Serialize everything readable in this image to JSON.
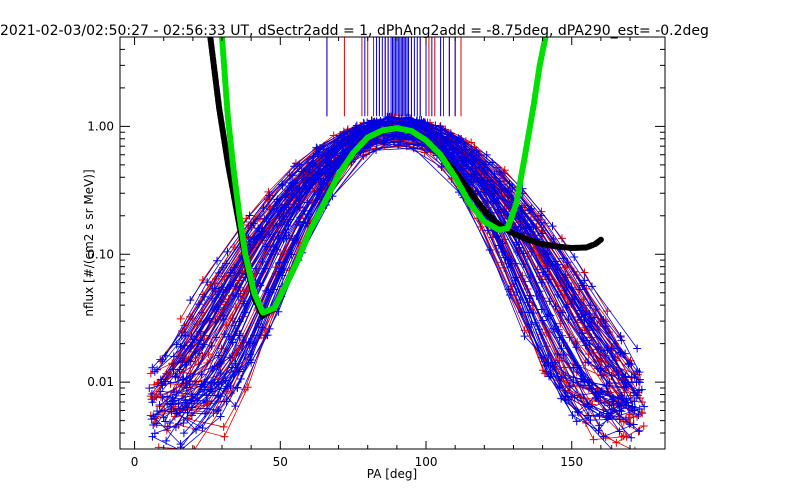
{
  "chart_data": {
    "type": "line",
    "title": "2021-02-03/02:50:27 - 02:56:33 UT, dSectr2add = 1, dPhAng2add = -8.75deg, dPA290_est=  -0.2deg",
    "xlabel": "PA [deg]",
    "ylabel": "nflux [#/(cm2 s sr MeV)]",
    "xlim": [
      -5,
      182
    ],
    "ylim": [
      0.003,
      5
    ],
    "y_scale": "log",
    "x_ticks": [
      0,
      50,
      100,
      150
    ],
    "x_tick_labels": [
      "0",
      "50",
      "100",
      "150"
    ],
    "y_ticks": [
      0.01,
      0.1,
      1.0
    ],
    "y_tick_labels": [
      "0.01",
      "0.10",
      "1.00"
    ],
    "grid": false,
    "colors": {
      "red_series": "#e00000",
      "blue_series": "#0000e0",
      "black_fit": "#000000",
      "green_fit": "#00e000"
    },
    "series": [
      {
        "color": "#000000",
        "style": "thick-dots",
        "x": [
          26,
          29,
          32,
          35,
          38,
          41,
          44,
          48,
          52,
          56,
          60,
          65,
          70,
          75,
          80,
          85,
          90,
          95,
          100,
          105,
          110,
          115,
          120,
          125,
          130,
          135,
          140,
          145,
          150,
          155,
          158,
          160
        ],
        "y": [
          5.0,
          1.4,
          0.52,
          0.22,
          0.095,
          0.046,
          0.033,
          0.038,
          0.058,
          0.09,
          0.15,
          0.25,
          0.42,
          0.62,
          0.82,
          0.93,
          0.97,
          0.92,
          0.78,
          0.6,
          0.44,
          0.31,
          0.22,
          0.17,
          0.145,
          0.13,
          0.12,
          0.115,
          0.112,
          0.113,
          0.12,
          0.13
        ]
      },
      {
        "color": "#00e000",
        "style": "thick-dots",
        "x": [
          30,
          32,
          34,
          36,
          38,
          41,
          44,
          48,
          52,
          56,
          60,
          65,
          70,
          75,
          80,
          85,
          90,
          95,
          100,
          105,
          110,
          115,
          120,
          125,
          128,
          131,
          134,
          137,
          139,
          141
        ],
        "y": [
          5.0,
          1.2,
          0.45,
          0.2,
          0.1,
          0.05,
          0.035,
          0.038,
          0.058,
          0.09,
          0.15,
          0.25,
          0.42,
          0.62,
          0.82,
          0.93,
          0.97,
          0.92,
          0.78,
          0.6,
          0.4,
          0.25,
          0.18,
          0.155,
          0.16,
          0.25,
          0.6,
          1.5,
          3.0,
          5.0
        ]
      }
    ],
    "reference_lines": {
      "color_red_x": [
        66,
        72,
        78,
        80,
        82,
        84,
        86,
        87,
        89,
        92,
        95,
        98,
        101,
        103,
        106,
        108,
        110,
        112
      ],
      "color_blue_x": [
        66,
        79,
        83,
        84,
        85,
        86,
        87,
        88,
        88.5,
        89,
        89.5,
        90,
        90.5,
        91,
        91.5,
        92,
        92.5,
        93,
        93.5,
        94,
        95,
        96,
        97,
        98,
        100,
        102,
        105,
        108,
        110
      ],
      "y_range": [
        1.2,
        5.0
      ]
    }
  }
}
